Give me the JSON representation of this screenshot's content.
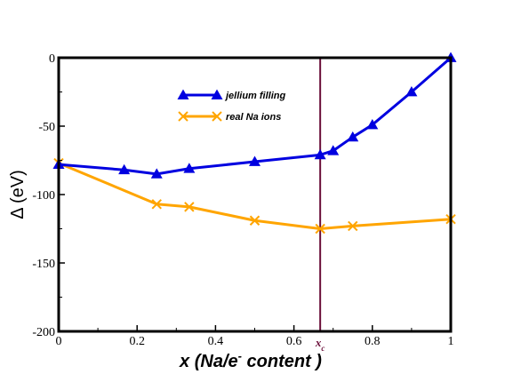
{
  "chart_data": {
    "type": "line",
    "title": "",
    "xlabel": "x (Na/e",
    "xlabel_sup": "-",
    "xlabel_tail": " content )",
    "ylabel": "Δ  (eV)",
    "xlim": [
      0,
      1
    ],
    "ylim": [
      -200,
      0
    ],
    "xticks": [
      0,
      0.2,
      0.4,
      0.6,
      0.8,
      1
    ],
    "xtick_labels": [
      "0",
      "0.2",
      "0.4",
      "0.6",
      "0.8",
      "1"
    ],
    "yticks": [
      0,
      -50,
      -100,
      -150,
      -200
    ],
    "ytick_labels": [
      "0",
      "-50",
      "-100",
      "-150",
      "-200"
    ],
    "grid": false,
    "legend_position": "top-center",
    "vline": {
      "x": 0.667,
      "label": "x",
      "label_sub": "c",
      "color": "#6b0f3a"
    },
    "series": [
      {
        "name": "jellium filling",
        "color": "#0000e0",
        "marker": "triangle",
        "x": [
          0,
          0.167,
          0.25,
          0.333,
          0.5,
          0.667,
          0.7,
          0.75,
          0.8,
          0.9,
          1.0
        ],
        "y": [
          -78,
          -82,
          -85,
          -81,
          -76,
          -71,
          -68,
          -58,
          -49,
          -25,
          0
        ]
      },
      {
        "name": "real Na ions",
        "color": "#ffa500",
        "marker": "x",
        "x": [
          0,
          0.25,
          0.333,
          0.5,
          0.667,
          0.75,
          1.0
        ],
        "y": [
          -77,
          -107,
          -109,
          -119,
          -125,
          -123,
          -118
        ]
      }
    ]
  }
}
